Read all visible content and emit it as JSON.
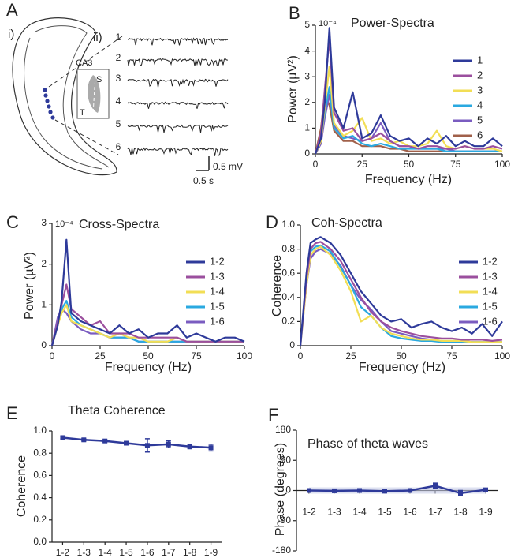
{
  "diagram": {
    "panel_label": "A",
    "labels": [
      "i)",
      "ii)",
      "CA3",
      "S",
      "T"
    ],
    "trace_labels": [
      "1",
      "2",
      "3",
      "4",
      "5",
      "6"
    ],
    "scale_y": "0.5 mV",
    "scale_x": "0.5 s"
  },
  "chart_data": [
    {
      "type": "line",
      "panel_label": "B",
      "title": "Power-Spectra",
      "y_multiplier": "10⁻⁴",
      "x_label": "Frequency (Hz)",
      "y_label": "Power (µV²)",
      "x": [
        0,
        3,
        5,
        7.5,
        10,
        15,
        20,
        25,
        30,
        35,
        40,
        45,
        50,
        55,
        60,
        65,
        70,
        75,
        80,
        85,
        90,
        95,
        100
      ],
      "xlim": [
        0,
        100
      ],
      "xticks": [
        0,
        25,
        50,
        75,
        100
      ],
      "ylim": [
        0,
        5
      ],
      "yticks": [
        0,
        1,
        2,
        3,
        4,
        5
      ],
      "series": [
        {
          "name": "1",
          "color": "#2e3a9a",
          "values": [
            0,
            0.6,
            2.0,
            4.9,
            1.8,
            1.0,
            2.4,
            0.6,
            0.8,
            1.5,
            0.7,
            0.5,
            0.6,
            0.3,
            0.6,
            0.4,
            0.7,
            0.3,
            0.5,
            0.3,
            0.3,
            0.6,
            0.3
          ]
        },
        {
          "name": "2",
          "color": "#9b4f9e",
          "values": [
            0,
            0.8,
            2.5,
            4.5,
            1.6,
            0.9,
            1.0,
            0.5,
            0.6,
            0.8,
            0.5,
            0.3,
            0.3,
            0.2,
            0.3,
            0.3,
            0.2,
            0.2,
            0.3,
            0.2,
            0.2,
            0.3,
            0.2
          ]
        },
        {
          "name": "3",
          "color": "#f2de55",
          "values": [
            0,
            0.5,
            1.8,
            3.4,
            1.2,
            0.7,
            0.9,
            1.4,
            0.5,
            0.6,
            0.4,
            0.5,
            0.3,
            0.3,
            0.4,
            0.9,
            0.3,
            0.2,
            0.3,
            0.2,
            0.2,
            0.2,
            0.1
          ]
        },
        {
          "name": "4",
          "color": "#2aa9e0",
          "values": [
            0,
            0.6,
            1.6,
            2.6,
            1.0,
            0.6,
            0.7,
            0.4,
            0.3,
            0.4,
            0.3,
            0.2,
            0.2,
            0.2,
            0.2,
            0.2,
            0.1,
            0.1,
            0.1,
            0.1,
            0.1,
            0.1,
            0.1
          ]
        },
        {
          "name": "5",
          "color": "#7a5cc0",
          "values": [
            0,
            0.4,
            1.4,
            2.3,
            1.1,
            0.7,
            0.6,
            0.5,
            0.6,
            1.2,
            0.5,
            0.3,
            0.3,
            0.2,
            0.2,
            0.2,
            0.2,
            0.1,
            0.1,
            0.1,
            0.1,
            0.1,
            0.1
          ]
        },
        {
          "name": "6",
          "color": "#a0604a",
          "values": [
            0,
            1.0,
            2.3,
            1.9,
            0.9,
            0.5,
            0.5,
            0.3,
            0.3,
            0.3,
            0.2,
            0.2,
            0.1,
            0.1,
            0.1,
            0.1,
            0.1,
            0.1,
            0.1,
            0.1,
            0.1,
            0.1,
            0.1
          ]
        }
      ]
    },
    {
      "type": "line",
      "panel_label": "C",
      "title": "Cross-Spectra",
      "y_multiplier": "10⁻⁴",
      "x_label": "Frequency (Hz)",
      "y_label": "Power (µV²)",
      "x": [
        0,
        3,
        5,
        7.5,
        10,
        15,
        20,
        25,
        30,
        35,
        40,
        45,
        50,
        55,
        60,
        65,
        70,
        75,
        80,
        85,
        90,
        95,
        100
      ],
      "xlim": [
        0,
        100
      ],
      "xticks": [
        0,
        25,
        50,
        75,
        100
      ],
      "ylim": [
        0,
        3
      ],
      "yticks": [
        0,
        1,
        2,
        3
      ],
      "series": [
        {
          "name": "1-2",
          "color": "#2e3a9a",
          "values": [
            0,
            0.5,
            1.1,
            2.6,
            0.8,
            0.6,
            0.5,
            0.4,
            0.3,
            0.5,
            0.3,
            0.4,
            0.2,
            0.3,
            0.3,
            0.5,
            0.2,
            0.3,
            0.2,
            0.1,
            0.2,
            0.2,
            0.1
          ]
        },
        {
          "name": "1-3",
          "color": "#9b4f9e",
          "values": [
            0,
            0.6,
            1.0,
            1.5,
            0.9,
            0.7,
            0.5,
            0.6,
            0.3,
            0.3,
            0.3,
            0.2,
            0.2,
            0.2,
            0.2,
            0.2,
            0.1,
            0.1,
            0.1,
            0.1,
            0.1,
            0.1,
            0.1
          ]
        },
        {
          "name": "1-4",
          "color": "#f2de55",
          "values": [
            0,
            0.5,
            0.8,
            1.0,
            0.6,
            0.5,
            0.4,
            0.3,
            0.2,
            0.3,
            0.2,
            0.2,
            0.1,
            0.1,
            0.1,
            0.2,
            0.1,
            0.1,
            0.1,
            0.1,
            0.1,
            0.1,
            0.1
          ]
        },
        {
          "name": "1-5",
          "color": "#2aa9e0",
          "values": [
            0,
            0.6,
            0.9,
            1.1,
            0.7,
            0.5,
            0.4,
            0.3,
            0.2,
            0.2,
            0.2,
            0.1,
            0.1,
            0.1,
            0.1,
            0.1,
            0.1,
            0.1,
            0.1,
            0.1,
            0.1,
            0.1,
            0.1
          ]
        },
        {
          "name": "1-6",
          "color": "#7a5cc0",
          "values": [
            0,
            0.7,
            0.9,
            0.8,
            0.6,
            0.4,
            0.3,
            0.3,
            0.2,
            0.2,
            0.2,
            0.1,
            0.1,
            0.1,
            0.1,
            0.1,
            0.1,
            0.1,
            0.1,
            0.1,
            0.1,
            0.1,
            0.1
          ]
        }
      ]
    },
    {
      "type": "line",
      "panel_label": "D",
      "title": "Coh-Spectra",
      "x_label": "Frequency (Hz)",
      "y_label": "Coherence",
      "x": [
        0,
        3,
        5,
        7.5,
        10,
        15,
        20,
        25,
        30,
        35,
        40,
        45,
        50,
        55,
        60,
        65,
        70,
        75,
        80,
        85,
        90,
        95,
        100
      ],
      "xlim": [
        0,
        100
      ],
      "xticks": [
        0,
        25,
        50,
        75,
        100
      ],
      "ylim": [
        0,
        1
      ],
      "yticks": [
        0,
        0.2,
        0.4,
        0.6,
        0.8,
        {
          "value": 1,
          "label": "1.0"
        }
      ],
      "series": [
        {
          "name": "1-2",
          "color": "#2e3a9a",
          "values": [
            0,
            0.6,
            0.85,
            0.88,
            0.9,
            0.85,
            0.75,
            0.6,
            0.45,
            0.35,
            0.25,
            0.2,
            0.22,
            0.15,
            0.18,
            0.2,
            0.15,
            0.12,
            0.15,
            0.1,
            0.18,
            0.08,
            0.2
          ]
        },
        {
          "name": "1-3",
          "color": "#9b4f9e",
          "values": [
            0,
            0.55,
            0.8,
            0.85,
            0.86,
            0.8,
            0.7,
            0.55,
            0.4,
            0.28,
            0.2,
            0.15,
            0.12,
            0.1,
            0.08,
            0.07,
            0.06,
            0.06,
            0.05,
            0.05,
            0.05,
            0.04,
            0.05
          ]
        },
        {
          "name": "1-4",
          "color": "#f2de55",
          "values": [
            0,
            0.5,
            0.75,
            0.8,
            0.82,
            0.75,
            0.62,
            0.45,
            0.2,
            0.25,
            0.15,
            0.1,
            0.08,
            0.06,
            0.05,
            0.05,
            0.04,
            0.04,
            0.04,
            0.03,
            0.03,
            0.03,
            0.03
          ]
        },
        {
          "name": "1-5",
          "color": "#2aa9e0",
          "values": [
            0,
            0.55,
            0.78,
            0.82,
            0.83,
            0.78,
            0.65,
            0.5,
            0.32,
            0.25,
            0.15,
            0.08,
            0.06,
            0.05,
            0.04,
            0.04,
            0.03,
            0.03,
            0.03,
            0.03,
            0.03,
            0.03,
            0.03
          ]
        },
        {
          "name": "1-6",
          "color": "#7a5cc0",
          "values": [
            0,
            0.5,
            0.72,
            0.78,
            0.8,
            0.76,
            0.66,
            0.5,
            0.38,
            0.3,
            0.2,
            0.12,
            0.1,
            0.08,
            0.06,
            0.05,
            0.04,
            0.04,
            0.04,
            0.03,
            0.03,
            0.03,
            0.03
          ]
        }
      ]
    },
    {
      "type": "errorline",
      "panel_label": "E",
      "title": "Theta Coherence",
      "y_label": "Coherence",
      "color": "#2e3a9a",
      "categories": [
        "1-2",
        "1-3",
        "1-4",
        "1-5",
        "1-6",
        "1-7",
        "1-8",
        "1-9"
      ],
      "values": [
        0.94,
        0.92,
        0.91,
        0.89,
        0.87,
        0.88,
        0.86,
        0.85
      ],
      "errors": [
        0.01,
        0.01,
        0.01,
        0.01,
        0.06,
        0.03,
        0.02,
        0.03
      ],
      "ylim": [
        0,
        1
      ],
      "yticks": [
        {
          "value": 0,
          "label": "0.0"
        },
        0.2,
        0.4,
        0.6,
        0.8,
        {
          "value": 1,
          "label": "1.0"
        }
      ]
    },
    {
      "type": "errorline",
      "panel_label": "F",
      "title": "Phase of theta waves",
      "y_label": "Phase (degrees)",
      "color": "#2e3a9a",
      "categories": [
        "1-2",
        "1-3",
        "1-4",
        "1-5",
        "1-6",
        "1-7",
        "1-8",
        "1-9"
      ],
      "values": [
        0,
        -1,
        0,
        -2,
        0,
        14,
        -8,
        2
      ],
      "errors": [
        2,
        2,
        2,
        2,
        2,
        8,
        8,
        3
      ],
      "ylim": [
        -180,
        180
      ],
      "yticks": [
        -180,
        -90,
        0,
        90,
        180
      ],
      "x_axis_at_zero": true
    }
  ]
}
